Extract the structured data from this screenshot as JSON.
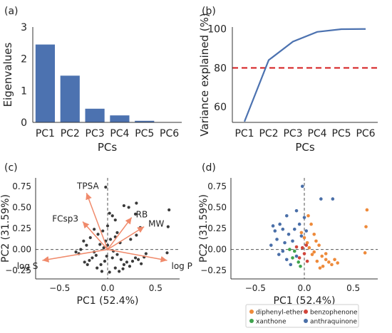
{
  "chart_data": [
    {
      "panel": "(a)",
      "type": "bar",
      "xlabel": "PCs",
      "ylabel": "Eigenvalues",
      "categories": [
        "PC1",
        "PC2",
        "PC3",
        "PC4",
        "PC5",
        "PC6"
      ],
      "values": [
        2.45,
        1.47,
        0.43,
        0.22,
        0.05,
        0.0
      ],
      "ylim": [
        0,
        3
      ],
      "yticks": [
        0,
        1,
        2,
        3
      ],
      "color": "#4c72b0"
    },
    {
      "panel": "(b)",
      "type": "line",
      "xlabel": "PCs",
      "ylabel": "Variance explained (%)",
      "categories": [
        "PC1",
        "PC2",
        "PC3",
        "PC4",
        "PC5",
        "PC6"
      ],
      "values": [
        52.4,
        84.0,
        93.5,
        98.5,
        99.9,
        100.0
      ],
      "ylim": [
        52,
        101
      ],
      "yticks": [
        60,
        80,
        100
      ],
      "threshold": 80,
      "line_color": "#4c72b0",
      "threshold_color": "#d62728"
    },
    {
      "panel": "(c)",
      "type": "scatter",
      "subtype": "biplot",
      "xlabel": "PC1 (52.4%)",
      "ylabel": "PC2 (31.59%)",
      "xlim": [
        -0.75,
        0.75
      ],
      "ylim": [
        -0.35,
        0.85
      ],
      "xticks": [
        -0.5,
        0.0,
        0.5
      ],
      "xtick_labels": [
        "−0.5",
        "0.0",
        "0.5"
      ],
      "yticks": [
        -0.25,
        0.0,
        0.25,
        0.5,
        0.75
      ],
      "ytick_labels": [
        "−0.25",
        "0.00",
        "0.25",
        "0.50",
        "0.75"
      ],
      "point_color": "#3a3a3a",
      "arrow_color": "#f08a6b",
      "loadings": [
        {
          "name": "TPSA",
          "x": -0.22,
          "y": 0.67
        },
        {
          "name": "FCsp3",
          "x": -0.26,
          "y": 0.33
        },
        {
          "name": "RB",
          "x": 0.25,
          "y": 0.38
        },
        {
          "name": "MW",
          "x": 0.38,
          "y": 0.27
        },
        {
          "name": "log S",
          "x": -0.68,
          "y": -0.13
        },
        {
          "name": "log P",
          "x": 0.62,
          "y": -0.13
        }
      ],
      "points": [
        [
          -0.02,
          0.74
        ],
        [
          0.02,
          0.43
        ],
        [
          0.05,
          0.4
        ],
        [
          0.08,
          0.35
        ],
        [
          0.17,
          0.52
        ],
        [
          0.22,
          0.5
        ],
        [
          0.3,
          0.55
        ],
        [
          0.29,
          0.42
        ],
        [
          0.64,
          0.47
        ],
        [
          0.63,
          0.27
        ],
        [
          0.62,
          -0.04
        ],
        [
          0.34,
          0.26
        ],
        [
          0.3,
          0.17
        ],
        [
          0.24,
          0.12
        ],
        [
          0.1,
          0.2
        ],
        [
          0.0,
          0.28
        ],
        [
          -0.05,
          0.22
        ],
        [
          -0.1,
          0.18
        ],
        [
          -0.14,
          0.24
        ],
        [
          -0.18,
          0.14
        ],
        [
          -0.22,
          0.05
        ],
        [
          -0.25,
          0.1
        ],
        [
          -0.28,
          0.0
        ],
        [
          -0.3,
          -0.05
        ],
        [
          -0.33,
          -0.03
        ],
        [
          -0.08,
          0.06
        ],
        [
          -0.04,
          0.02
        ],
        [
          0.0,
          0.05
        ],
        [
          0.03,
          0.12
        ],
        [
          0.06,
          -0.02
        ],
        [
          0.1,
          -0.06
        ],
        [
          0.14,
          -0.12
        ],
        [
          0.17,
          -0.18
        ],
        [
          0.2,
          -0.15
        ],
        [
          0.23,
          -0.2
        ],
        [
          0.26,
          -0.14
        ],
        [
          0.29,
          -0.1
        ],
        [
          0.32,
          -0.12
        ],
        [
          0.35,
          -0.17
        ],
        [
          0.38,
          -0.09
        ],
        [
          0.4,
          -0.05
        ],
        [
          -0.12,
          -0.07
        ],
        [
          -0.16,
          -0.1
        ],
        [
          -0.19,
          -0.13
        ],
        [
          -0.21,
          -0.18
        ],
        [
          -0.24,
          -0.15
        ],
        [
          -0.11,
          -0.22
        ],
        [
          -0.07,
          -0.18
        ],
        [
          -0.03,
          -0.14
        ],
        [
          -0.01,
          -0.08
        ],
        [
          0.05,
          -0.1
        ],
        [
          0.08,
          -0.22
        ],
        [
          0.12,
          -0.26
        ],
        [
          0.16,
          -0.23
        ],
        [
          0.02,
          -0.27
        ],
        [
          -0.06,
          -0.26
        ],
        [
          -0.14,
          -0.03
        ],
        [
          -0.02,
          0.1
        ],
        [
          0.08,
          0.15
        ],
        [
          0.13,
          0.08
        ]
      ]
    },
    {
      "panel": "(d)",
      "type": "scatter",
      "xlabel": "PC1 (52.4%)",
      "ylabel": "PC2 (31.59%)",
      "xlim": [
        -0.75,
        0.75
      ],
      "ylim": [
        -0.35,
        0.85
      ],
      "xticks": [
        -0.5,
        0.0,
        0.5
      ],
      "xtick_labels": [
        "−0.5",
        "0.0",
        "0.5"
      ],
      "yticks": [
        -0.25,
        0.0,
        0.25,
        0.5,
        0.75
      ],
      "ytick_labels": [
        "−0.25",
        "0.00",
        "0.25",
        "0.50",
        "0.75"
      ],
      "legend_position": "bottom",
      "series": [
        {
          "name": "diphenyl-ether",
          "color": "#ee8a3a",
          "points": [
            [
              0.64,
              0.47
            ],
            [
              0.63,
              0.27
            ],
            [
              0.62,
              -0.04
            ],
            [
              0.04,
              0.4
            ],
            [
              0.07,
              0.3
            ],
            [
              0.1,
              0.18
            ],
            [
              0.12,
              0.1
            ],
            [
              0.15,
              0.05
            ],
            [
              0.18,
              -0.08
            ],
            [
              0.22,
              -0.12
            ],
            [
              0.25,
              -0.15
            ],
            [
              0.28,
              -0.18
            ],
            [
              0.31,
              -0.12
            ],
            [
              0.34,
              -0.16
            ],
            [
              0.19,
              -0.2
            ],
            [
              0.16,
              -0.22
            ],
            [
              0.13,
              -0.14
            ],
            [
              0.08,
              -0.06
            ],
            [
              0.03,
              0.08
            ],
            [
              0.0,
              0.14
            ],
            [
              -0.03,
              0.2
            ],
            [
              0.05,
              0.02
            ],
            [
              0.1,
              -0.03
            ],
            [
              0.22,
              -0.05
            ]
          ]
        },
        {
          "name": "benzophenone",
          "color": "#d1443a",
          "points": [
            [
              0.02,
              0.05
            ],
            [
              -0.02,
              0.02
            ],
            [
              0.0,
              -0.05
            ],
            [
              -0.05,
              -0.1
            ],
            [
              0.03,
              -0.14
            ],
            [
              -0.08,
              0.03
            ]
          ]
        },
        {
          "name": "xanthone",
          "color": "#3fa34d",
          "points": [
            [
              -0.1,
              -0.02
            ],
            [
              -0.06,
              -0.15
            ],
            [
              -0.12,
              -0.1
            ],
            [
              -0.04,
              -0.2
            ],
            [
              -0.15,
              0.0
            ]
          ]
        },
        {
          "name": "anthraquinone",
          "color": "#4a6fa8",
          "points": [
            [
              -0.02,
              0.75
            ],
            [
              0.17,
              0.6
            ],
            [
              0.29,
              0.6
            ],
            [
              0.0,
              0.38
            ],
            [
              -0.08,
              0.46
            ],
            [
              -0.18,
              0.4
            ],
            [
              -0.25,
              0.3
            ],
            [
              -0.3,
              0.22
            ],
            [
              -0.28,
              0.12
            ],
            [
              -0.34,
              0.05
            ],
            [
              -0.22,
              -0.02
            ],
            [
              -0.18,
              -0.12
            ],
            [
              -0.16,
              0.18
            ],
            [
              -0.1,
              0.24
            ],
            [
              -0.05,
              0.3
            ],
            [
              -0.12,
              0.1
            ],
            [
              -0.08,
              -0.08
            ],
            [
              -0.2,
              0.08
            ],
            [
              -0.26,
              -0.06
            ],
            [
              -0.14,
              -0.18
            ],
            [
              -0.03,
              0.16
            ],
            [
              0.02,
              0.22
            ],
            [
              -0.22,
              0.24
            ],
            [
              -0.32,
              0.28
            ]
          ]
        }
      ]
    }
  ]
}
